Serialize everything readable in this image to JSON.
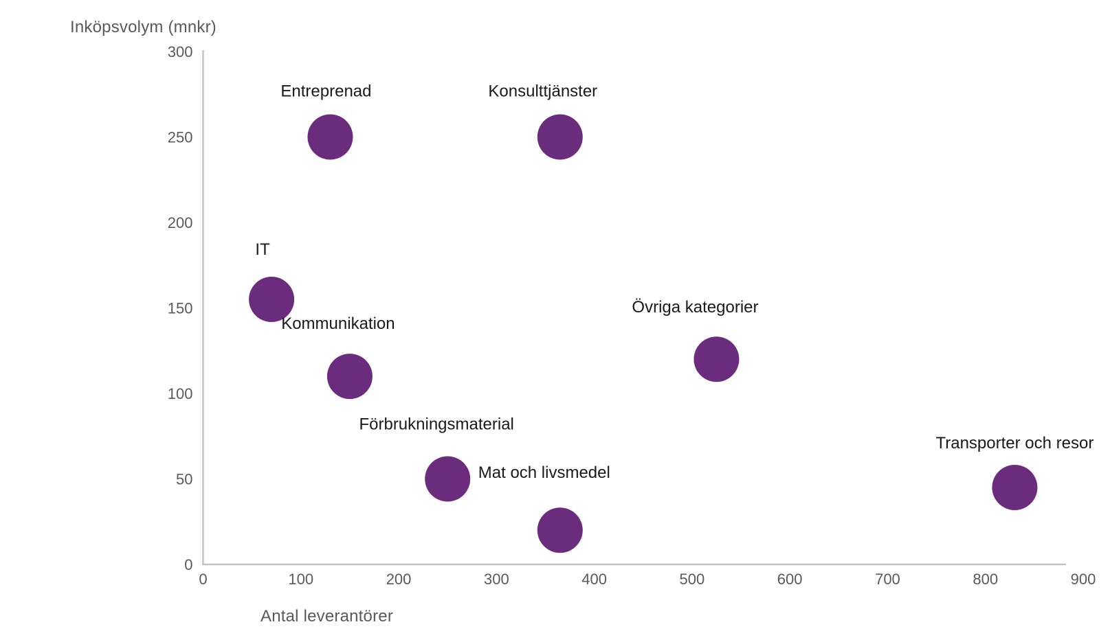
{
  "chart_data": {
    "type": "scatter",
    "title": "",
    "xlabel": "Antal leverantörer",
    "ylabel": "Inköpsvolym (mnkr)",
    "xlim": [
      0,
      900
    ],
    "ylim": [
      0,
      300
    ],
    "x_ticks": [
      0,
      100,
      200,
      300,
      400,
      500,
      600,
      700,
      800,
      900
    ],
    "y_ticks": [
      0,
      50,
      100,
      150,
      200,
      250,
      300
    ],
    "grid": false,
    "legend": false,
    "bubble_color": "#6B2C7E",
    "axis_line_color": "#C3C3C3",
    "tick_text_color": "#5A5A5A",
    "point_label_color": "#1A1A1A",
    "bubble_radius_px": 33,
    "points": [
      {
        "label": "Entreprenad",
        "x": 130,
        "y": 250,
        "label_offset": [
          -6,
          -67
        ]
      },
      {
        "label": "Konsulttjänster",
        "x": 365,
        "y": 250,
        "label_offset": [
          -25,
          -67
        ]
      },
      {
        "label": "IT",
        "x": 70,
        "y": 155,
        "label_offset": [
          -13,
          -73
        ]
      },
      {
        "label": "Kommunikation",
        "x": 150,
        "y": 110,
        "label_offset": [
          -17,
          -77
        ]
      },
      {
        "label": "Övriga kategorier",
        "x": 525,
        "y": 120,
        "label_offset": [
          -31,
          -76
        ]
      },
      {
        "label": "Förbrukningsmaterial",
        "x": 250,
        "y": 50,
        "label_offset": [
          -16,
          -80
        ]
      },
      {
        "label": "Mat och livsmedel",
        "x": 365,
        "y": 20,
        "label_offset": [
          -23,
          -84
        ]
      },
      {
        "label": "Transporter och resor",
        "x": 830,
        "y": 45,
        "label_offset": [
          0,
          -65
        ]
      }
    ]
  }
}
